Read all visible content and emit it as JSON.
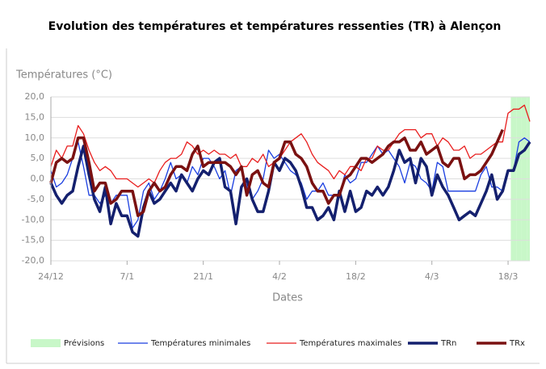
{
  "chart_data": {
    "type": "line",
    "title": "Evolution des températures et températures ressenties (TR) à Alençon",
    "y_label": "Températures (°C)",
    "x_label": "Dates",
    "categories": [
      "24/12",
      null,
      null,
      null,
      null,
      null,
      null,
      null,
      null,
      null,
      null,
      null,
      null,
      null,
      "7/1",
      null,
      null,
      null,
      null,
      null,
      null,
      null,
      null,
      null,
      null,
      null,
      null,
      null,
      "21/1",
      null,
      null,
      null,
      null,
      null,
      null,
      null,
      null,
      null,
      null,
      null,
      null,
      null,
      "4/2",
      null,
      null,
      null,
      null,
      null,
      null,
      null,
      null,
      null,
      null,
      null,
      null,
      null,
      "18/2",
      null,
      null,
      null,
      null,
      null,
      null,
      null,
      null,
      null,
      null,
      null,
      null,
      null,
      "4/3",
      null,
      null,
      null,
      null,
      null,
      null,
      null,
      null,
      null,
      null,
      null,
      null,
      null,
      "18/3",
      null,
      null,
      null,
      null
    ],
    "ylim": [
      -20,
      20
    ],
    "yticks": [
      {
        "value": 20,
        "label": "20,0"
      },
      {
        "value": 15,
        "label": "15,0"
      },
      {
        "value": 10,
        "label": "10,0"
      },
      {
        "value": 5,
        "label": "5,0"
      },
      {
        "value": 0,
        "label": "0,0"
      },
      {
        "value": -5,
        "label": "-5,0"
      },
      {
        "value": -10,
        "label": "-10,0"
      },
      {
        "value": -15,
        "label": "-15,0"
      },
      {
        "value": -20,
        "label": "-20,0"
      }
    ],
    "grid": true,
    "legend": "bottom",
    "series": [
      {
        "name": "Prévisions",
        "kind": "band",
        "color": "#c8f7c8",
        "values": [
          null,
          null,
          null,
          null,
          null,
          null,
          null,
          null,
          null,
          null,
          null,
          null,
          null,
          null,
          null,
          null,
          null,
          null,
          null,
          null,
          null,
          null,
          null,
          null,
          null,
          null,
          null,
          null,
          null,
          null,
          null,
          null,
          null,
          null,
          null,
          null,
          null,
          null,
          null,
          null,
          null,
          null,
          null,
          null,
          null,
          null,
          null,
          null,
          null,
          null,
          null,
          null,
          null,
          null,
          null,
          null,
          null,
          null,
          null,
          null,
          null,
          null,
          null,
          null,
          null,
          null,
          null,
          null,
          null,
          null,
          null,
          null,
          null,
          null,
          null,
          null,
          null,
          null,
          null,
          null,
          null,
          null,
          null,
          null,
          null,
          20,
          20,
          20,
          20
        ]
      },
      {
        "name": "Températures minimales",
        "kind": "line",
        "color": "#1a3ee0",
        "line_width": 1.3,
        "values": [
          2,
          -2,
          -1,
          1,
          5,
          9,
          3,
          -4,
          -4,
          -6,
          -4,
          -6,
          -4,
          -4,
          -4,
          -12,
          -10,
          -3,
          -1,
          -5,
          -3,
          0,
          4,
          0,
          1,
          -1,
          3,
          1,
          5,
          5,
          3,
          0,
          2,
          -4,
          2,
          3,
          -2,
          -5,
          -3,
          0,
          7,
          5,
          6,
          4,
          2,
          1,
          -1,
          -5,
          -3,
          -3,
          -1,
          -4,
          -4,
          -4,
          1,
          -1,
          0,
          4,
          4,
          6,
          8,
          6,
          7,
          5,
          3,
          -1,
          4,
          3,
          0,
          -1,
          -3,
          4,
          3,
          -3,
          -3,
          -3,
          -3,
          -3,
          -3,
          1,
          3,
          -2,
          -2,
          -3,
          2,
          2,
          9,
          10,
          9
        ]
      },
      {
        "name": "Températures maximales",
        "kind": "line",
        "color": "#e81d1d",
        "line_width": 1.3,
        "values": [
          3,
          7,
          5,
          8,
          8,
          13,
          11,
          7,
          4,
          2,
          3,
          2,
          0,
          0,
          0,
          -1,
          -2,
          -1,
          0,
          -1,
          2,
          4,
          5,
          5,
          6,
          9,
          8,
          6,
          7,
          6,
          7,
          6,
          6,
          5,
          6,
          3,
          3,
          5,
          4,
          6,
          3,
          4,
          5,
          7,
          9,
          10,
          11,
          9,
          6,
          4,
          3,
          2,
          0,
          2,
          1,
          3,
          3,
          2,
          5,
          5,
          8,
          7,
          7,
          9,
          11,
          12,
          12,
          12,
          10,
          11,
          11,
          8,
          10,
          9,
          7,
          7,
          8,
          5,
          6,
          6,
          7,
          8,
          9,
          9,
          16,
          17,
          17,
          18,
          14
        ]
      },
      {
        "name": "TRn",
        "kind": "line",
        "color": "#14206e",
        "line_width": 3.5,
        "values": [
          -1,
          -4,
          -6,
          -4,
          -3,
          3,
          8,
          1,
          -5,
          -8,
          -2,
          -11,
          -6,
          -9,
          -9,
          -13,
          -14,
          -7,
          -3,
          -6,
          -5,
          -3,
          -1,
          -3,
          1,
          -1,
          -3,
          0,
          2,
          1,
          4,
          5,
          -2,
          -3,
          -11,
          -2,
          0,
          -5,
          -8,
          -8,
          -3,
          4,
          2,
          5,
          4,
          2,
          -2,
          -7,
          -7,
          -10,
          -9,
          -7,
          -10,
          -3,
          -8,
          -3,
          -8,
          -7,
          -3,
          -4,
          -2,
          -4,
          -2,
          2,
          7,
          4,
          5,
          -1,
          5,
          3,
          -4,
          1,
          -2,
          -4,
          -7,
          -10,
          -9,
          -8,
          -9,
          -6,
          -3,
          1,
          -5,
          -3,
          2,
          2,
          6,
          7,
          9
        ]
      },
      {
        "name": "TRx",
        "kind": "line",
        "color": "#7a1111",
        "line_width": 3.5,
        "values": [
          -1,
          4,
          5,
          4,
          5,
          10,
          10,
          4,
          -3,
          -1,
          -1,
          -6,
          -5,
          -3,
          -3,
          -3,
          -9,
          -8,
          -3,
          -1,
          -3,
          -2,
          1,
          3,
          3,
          2,
          6,
          8,
          3,
          4,
          4,
          4,
          4,
          3,
          1,
          3,
          -4,
          1,
          2,
          -1,
          -2,
          4,
          5,
          9,
          9,
          6,
          5,
          3,
          -1,
          -3,
          -3,
          -6,
          -4,
          -4,
          0,
          1,
          3,
          5,
          5,
          4,
          5,
          6,
          8,
          9,
          9,
          10,
          7,
          7,
          9,
          6,
          7,
          8,
          4,
          3,
          5,
          5,
          0,
          1,
          1,
          2,
          4,
          6,
          9,
          12,
          null,
          null,
          null,
          null,
          null
        ]
      }
    ]
  }
}
